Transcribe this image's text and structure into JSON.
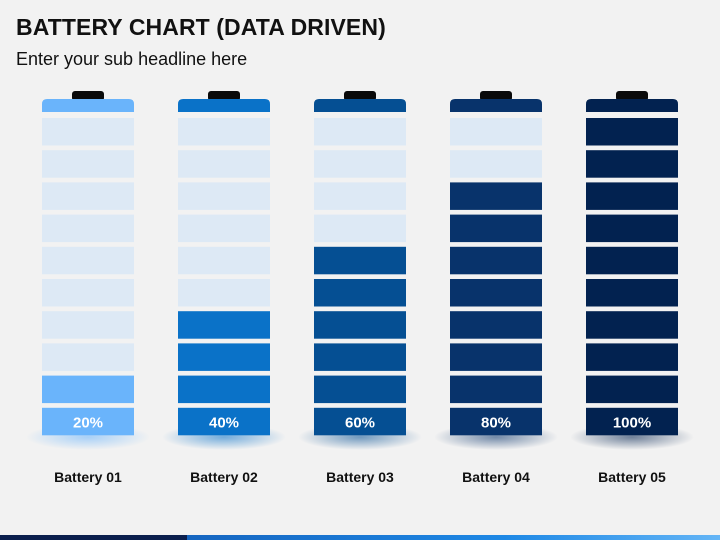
{
  "header": {
    "title": "BATTERY CHART (DATA DRIVEN)",
    "subtitle": "Enter your sub headline here"
  },
  "colors": {
    "background": "#f2f2f2",
    "empty_cell": "#dde9f5",
    "terminal": "#0a0a0a"
  },
  "chart_data": {
    "type": "bar",
    "categories": [
      "Battery 01",
      "Battery 02",
      "Battery 03",
      "Battery 04",
      "Battery 05"
    ],
    "values": [
      20,
      40,
      60,
      80,
      100
    ],
    "value_labels": [
      "20%",
      "40%",
      "60%",
      "80%",
      "100%"
    ],
    "colors": [
      "#6ab4fb",
      "#0a72c8",
      "#054f93",
      "#08336b",
      "#022250"
    ],
    "ylim": [
      0,
      100
    ],
    "segments_per_battery": 10,
    "grid": false,
    "legend": "none"
  }
}
